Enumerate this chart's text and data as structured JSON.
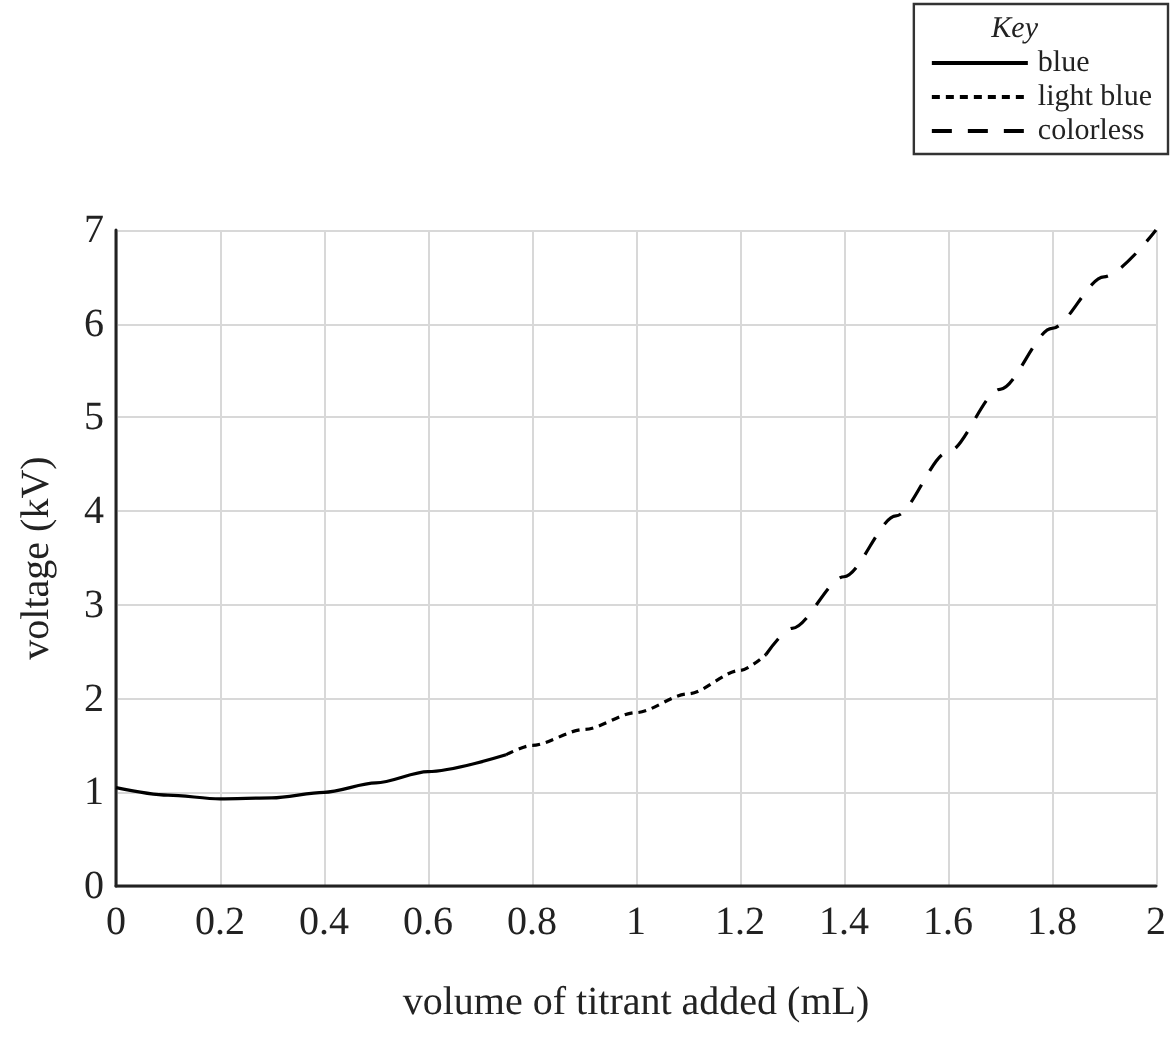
{
  "chart_data": {
    "type": "line",
    "xlabel": "volume of titrant added (mL)",
    "ylabel": "voltage (kV)",
    "legend_title": "Key",
    "legend": "top right",
    "grid": true,
    "marker": "none",
    "xlim": [
      0,
      2
    ],
    "xticks": [
      0,
      0.2,
      0.4,
      0.6,
      0.8,
      1,
      1.2,
      1.4,
      1.6,
      1.8,
      2
    ],
    "ylim": [
      0,
      7
    ],
    "yticks": [
      0,
      1,
      2,
      3,
      4,
      5,
      6,
      7
    ],
    "series": [
      {
        "name": "blue",
        "color": "#000000",
        "line_style": "solid",
        "x": [
          0,
          0.1,
          0.2,
          0.3,
          0.4,
          0.5,
          0.6,
          0.75
        ],
        "values": [
          1.05,
          0.97,
          0.93,
          0.94,
          1.0,
          1.1,
          1.22,
          1.4
        ]
      },
      {
        "name": "light blue",
        "color": "#000000",
        "line_style": "dotted",
        "x": [
          0.75,
          0.8,
          0.9,
          1.0,
          1.1,
          1.2,
          1.25
        ],
        "values": [
          1.4,
          1.5,
          1.67,
          1.85,
          2.05,
          2.3,
          2.47
        ]
      },
      {
        "name": "colorless",
        "color": "#000000",
        "line_style": "dashed",
        "x": [
          1.25,
          1.3,
          1.4,
          1.5,
          1.6,
          1.7,
          1.8,
          1.9,
          2.0
        ],
        "values": [
          2.47,
          2.75,
          3.3,
          3.95,
          4.63,
          5.3,
          5.95,
          6.5,
          7.0
        ]
      }
    ]
  }
}
